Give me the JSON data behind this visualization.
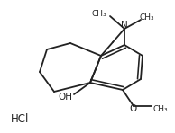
{
  "bg_color": "#ffffff",
  "line_color": "#222222",
  "line_width": 1.3,
  "hcl_text": "HCl",
  "hcl_fontsize": 8.5,
  "oh_text": "OH",
  "oh_fontsize": 7.5,
  "n_text": "N",
  "n_fontsize": 7.5,
  "o_text": "O",
  "o_fontsize": 7.5,
  "me_fontsize": 6.5
}
